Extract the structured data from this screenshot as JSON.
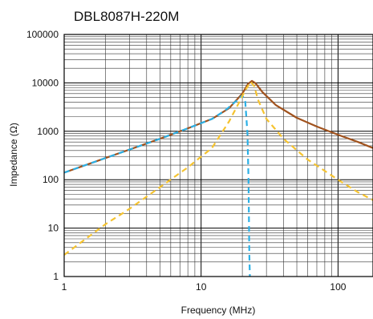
{
  "chart_data": {
    "type": "line",
    "title": "DBL8087H-220M",
    "xlabel": "Frequency (MHz)",
    "ylabel": "Impedance (Ω)",
    "x_scale": "log",
    "y_scale": "log",
    "xlim": [
      1,
      180
    ],
    "ylim": [
      1,
      100000
    ],
    "x_ticks": [
      {
        "value": 1,
        "label": "1"
      },
      {
        "value": 10,
        "label": "10"
      },
      {
        "value": 100,
        "label": "100"
      }
    ],
    "y_ticks": [
      {
        "value": 1,
        "label": "1"
      },
      {
        "value": 10,
        "label": "10"
      },
      {
        "value": 100,
        "label": "100"
      },
      {
        "value": 1000,
        "label": "1000"
      },
      {
        "value": 10000,
        "label": "10000"
      },
      {
        "value": 100000,
        "label": "100000"
      }
    ],
    "grid": true,
    "series": [
      {
        "color": "#A0521D",
        "style": "solid",
        "points": [
          [
            1,
            140
          ],
          [
            2,
            280
          ],
          [
            3,
            420
          ],
          [
            5,
            700
          ],
          [
            8,
            1150
          ],
          [
            12,
            1800
          ],
          [
            16,
            3000
          ],
          [
            20,
            6000
          ],
          [
            22,
            9500
          ],
          [
            23.5,
            11000
          ],
          [
            25,
            9800
          ],
          [
            28,
            6500
          ],
          [
            35,
            3500
          ],
          [
            50,
            1900
          ],
          [
            70,
            1250
          ],
          [
            100,
            850
          ],
          [
            140,
            600
          ],
          [
            180,
            450
          ]
        ]
      },
      {
        "color": "#2BB0E6",
        "style": "dashed",
        "points": [
          [
            1,
            140
          ],
          [
            2,
            280
          ],
          [
            3,
            420
          ],
          [
            5,
            700
          ],
          [
            8,
            1150
          ],
          [
            12,
            1800
          ],
          [
            15,
            2700
          ],
          [
            18,
            4200
          ],
          [
            20,
            5500
          ],
          [
            21,
            4200
          ],
          [
            21.8,
            900
          ],
          [
            22.2,
            100
          ],
          [
            22.5,
            3
          ],
          [
            22.7,
            1
          ]
        ]
      },
      {
        "color": "#F5C330",
        "style": "dashed",
        "points": [
          [
            1,
            2.8
          ],
          [
            2,
            12
          ],
          [
            3,
            25
          ],
          [
            5,
            70
          ],
          [
            8,
            180
          ],
          [
            12,
            450
          ],
          [
            16,
            1600
          ],
          [
            19,
            4000
          ],
          [
            21,
            7000
          ],
          [
            23,
            10500
          ],
          [
            24.5,
            8500
          ],
          [
            26,
            4500
          ],
          [
            30,
            1800
          ],
          [
            40,
            700
          ],
          [
            60,
            260
          ],
          [
            100,
            100
          ],
          [
            140,
            55
          ],
          [
            180,
            38
          ]
        ]
      }
    ]
  }
}
